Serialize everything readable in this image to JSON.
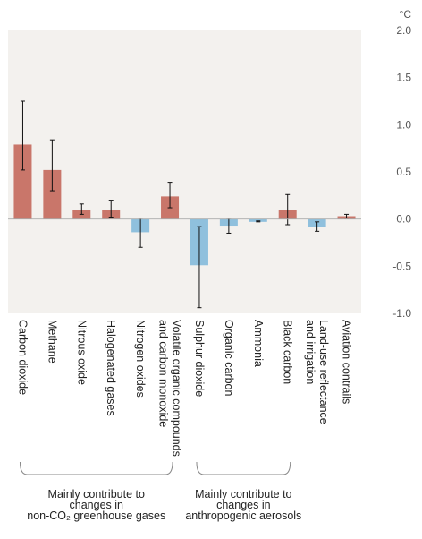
{
  "chart_data": {
    "type": "bar",
    "unit": "°C",
    "ylim": [
      -1.0,
      2.0
    ],
    "yticks": [
      -1.0,
      -0.5,
      0.0,
      0.5,
      1.0,
      1.5,
      2.0
    ],
    "ytick_labels": [
      "-1.0",
      "-0.5",
      "0.0",
      "0.5",
      "1.0",
      "1.5",
      "2.0"
    ],
    "grid": false,
    "categories": [
      {
        "label": [
          "Carbon dioxide"
        ],
        "value": 0.79,
        "err_low": 0.52,
        "err_high": 1.25
      },
      {
        "label": [
          "Methane"
        ],
        "value": 0.52,
        "err_low": 0.3,
        "err_high": 0.84
      },
      {
        "label": [
          "Nitrous oxide"
        ],
        "value": 0.1,
        "err_low": 0.05,
        "err_high": 0.16
      },
      {
        "label": [
          "Halogenated gases"
        ],
        "value": 0.1,
        "err_low": 0.02,
        "err_high": 0.2
      },
      {
        "label": [
          "Nitrogen oxides"
        ],
        "value": -0.14,
        "err_low": -0.3,
        "err_high": 0.01
      },
      {
        "label": [
          "Volatile organic compounds",
          "and carbon monoxide"
        ],
        "value": 0.24,
        "err_low": 0.12,
        "err_high": 0.39
      },
      {
        "label": [
          "Sulphur dioxide"
        ],
        "value": -0.49,
        "err_low": -0.94,
        "err_high": -0.08
      },
      {
        "label": [
          "Organic carbon"
        ],
        "value": -0.07,
        "err_low": -0.15,
        "err_high": 0.01
      },
      {
        "label": [
          "Ammonia"
        ],
        "value": -0.03,
        "err_low": -0.03,
        "err_high": -0.02
      },
      {
        "label": [
          "Black carbon"
        ],
        "value": 0.1,
        "err_low": -0.06,
        "err_high": 0.26
      },
      {
        "label": [
          "Land-use reflectance",
          "and irrigation"
        ],
        "value": -0.08,
        "err_low": -0.13,
        "err_high": -0.03
      },
      {
        "label": [
          "Aviation contrails"
        ],
        "value": 0.03,
        "err_low": 0.01,
        "err_high": 0.05
      }
    ],
    "groups": [
      {
        "label": [
          "Mainly contribute to",
          "changes in",
          "non-CO₂ greenhouse gases"
        ],
        "from": 0,
        "to": 5
      },
      {
        "label": [
          "Mainly contribute to",
          "changes in",
          "anthropogenic aerosols"
        ],
        "from": 6,
        "to": 9
      }
    ],
    "colors": {
      "positive": "#c9766a",
      "negative": "#8fc0dd",
      "background": "#f3f1ee",
      "error": "#111111"
    }
  }
}
